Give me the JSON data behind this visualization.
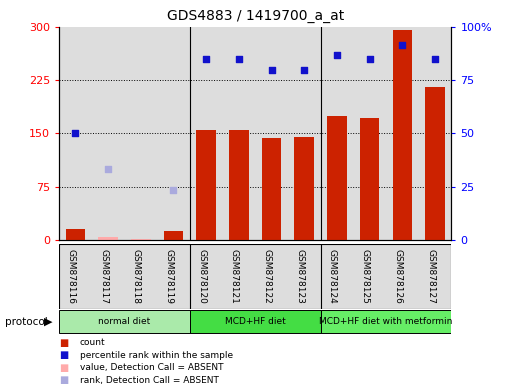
{
  "title": "GDS4883 / 1419700_a_at",
  "samples": [
    "GSM878116",
    "GSM878117",
    "GSM878118",
    "GSM878119",
    "GSM878120",
    "GSM878121",
    "GSM878122",
    "GSM878123",
    "GSM878124",
    "GSM878125",
    "GSM878126",
    "GSM878127"
  ],
  "bar_values": [
    15,
    4,
    1,
    12,
    155,
    155,
    143,
    145,
    175,
    172,
    295,
    215
  ],
  "bar_absent": [
    false,
    true,
    true,
    false,
    false,
    false,
    false,
    false,
    false,
    false,
    false,
    false
  ],
  "scatter_values": [
    150,
    null,
    null,
    null,
    null,
    null,
    null,
    null,
    null,
    null,
    null,
    null
  ],
  "scatter_absent": [
    false,
    false,
    false,
    false,
    false,
    false,
    false,
    false,
    false,
    false,
    false,
    false
  ],
  "rank_absent_values": [
    null,
    100,
    null,
    70,
    null,
    null,
    null,
    null,
    null,
    null,
    null,
    null
  ],
  "percentile_values": [
    null,
    null,
    null,
    null,
    255,
    255,
    240,
    240,
    260,
    255,
    275,
    255
  ],
  "percentile_absent": [
    false,
    false,
    false,
    false,
    false,
    false,
    false,
    false,
    false,
    false,
    false,
    false
  ],
  "protocols": [
    {
      "label": "normal diet",
      "start": 0,
      "end": 4,
      "color": "#AAEAAA"
    },
    {
      "label": "MCD+HF diet",
      "start": 4,
      "end": 8,
      "color": "#44DD44"
    },
    {
      "label": "MCD+HF diet with metformin",
      "start": 8,
      "end": 12,
      "color": "#66EE66"
    }
  ],
  "ylim_left": [
    0,
    300
  ],
  "ylim_right": [
    0,
    100
  ],
  "yticks_left": [
    0,
    75,
    150,
    225,
    300
  ],
  "yticks_right": [
    0,
    25,
    50,
    75,
    100
  ],
  "ytick_labels_right": [
    "0",
    "25",
    "50",
    "75",
    "100%"
  ],
  "bar_color": "#CC2200",
  "bar_absent_color": "#FFAAAA",
  "scatter_color": "#1111CC",
  "scatter_absent_color": "#AAAADD",
  "percentile_color": "#1111CC",
  "bg_color": "#DDDDDD",
  "legend_items": [
    {
      "label": "count",
      "color": "#CC2200"
    },
    {
      "label": "percentile rank within the sample",
      "color": "#1111CC"
    },
    {
      "label": "value, Detection Call = ABSENT",
      "color": "#FFAAAA"
    },
    {
      "label": "rank, Detection Call = ABSENT",
      "color": "#AAAADD"
    }
  ],
  "grid_yticks": [
    75,
    150,
    225
  ],
  "group_dividers": [
    3.5,
    7.5
  ]
}
